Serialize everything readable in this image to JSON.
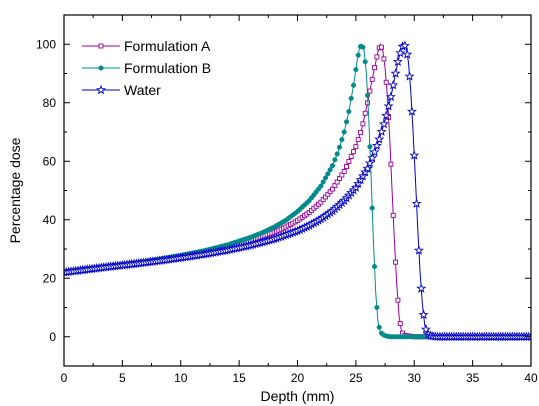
{
  "chart_data": {
    "type": "line",
    "title": "",
    "xlabel": "Depth (mm)",
    "ylabel": "Percentage dose",
    "xlim": [
      0,
      40
    ],
    "ylim": [
      -10,
      110
    ],
    "xticks": [
      0,
      5,
      10,
      15,
      20,
      25,
      30,
      35,
      40
    ],
    "yticks": [
      0,
      20,
      40,
      60,
      80,
      100
    ],
    "grid": false,
    "legend": "top-left",
    "series": [
      {
        "name": "Formulation A",
        "color": "#990099",
        "marker": "square-open",
        "x": [
          0,
          2,
          4,
          6,
          8,
          10,
          12,
          14,
          16,
          18,
          19,
          20,
          21,
          22,
          23,
          24,
          25,
          25.5,
          26,
          26.3,
          26.6,
          26.9,
          27.1,
          27.3,
          27.5,
          27.7,
          27.9,
          28.1,
          28.3,
          28.5,
          28.7,
          28.9,
          29.1,
          30,
          32,
          35,
          40
        ],
        "y": [
          22,
          23.2,
          24.1,
          25.1,
          26.2,
          27.4,
          28.9,
          30.6,
          32.8,
          35.7,
          37.5,
          39.7,
          42.5,
          46,
          50.5,
          56.5,
          65,
          71,
          80,
          86,
          92,
          97.5,
          100,
          98,
          92,
          82,
          68,
          50,
          33,
          18,
          7,
          2,
          0.5,
          0,
          0,
          0,
          0
        ]
      },
      {
        "name": "Formulation B",
        "color": "#008b8b",
        "marker": "circle-filled",
        "x": [
          0,
          2,
          4,
          6,
          8,
          10,
          12,
          14,
          16,
          17,
          18,
          19,
          20,
          21,
          22,
          23,
          23.5,
          24,
          24.4,
          24.8,
          25.1,
          25.3,
          25.5,
          25.7,
          25.9,
          26.1,
          26.3,
          26.5,
          26.7,
          26.9,
          27.1,
          27.5,
          28,
          30,
          35,
          40
        ],
        "y": [
          22,
          23.2,
          24.2,
          25.2,
          26.4,
          27.8,
          29.4,
          31.4,
          34,
          35.6,
          37.5,
          39.8,
          42.8,
          46.5,
          51.5,
          58.5,
          63.5,
          70,
          77,
          86,
          94,
          98.5,
          100,
          98,
          90,
          75,
          55,
          33,
          15,
          5,
          1.5,
          0.3,
          0,
          0,
          0,
          0
        ]
      },
      {
        "name": "Water",
        "color": "#0000cc",
        "marker": "star-open",
        "x": [
          0,
          2,
          4,
          6,
          8,
          10,
          12,
          14,
          16,
          18,
          20,
          21,
          22,
          23,
          24,
          25,
          26,
          26.5,
          27,
          27.5,
          28,
          28.3,
          28.6,
          28.9,
          29.1,
          29.3,
          29.5,
          29.7,
          29.9,
          30.1,
          30.3,
          30.5,
          30.7,
          30.9,
          31.1,
          31.5,
          32,
          35,
          40
        ],
        "y": [
          22,
          23,
          24,
          24.9,
          25.9,
          27,
          28.2,
          29.6,
          31.3,
          33.4,
          36.2,
          38,
          40.2,
          43,
          46.5,
          51,
          57.5,
          62,
          67.5,
          74,
          82,
          88,
          94,
          98.5,
          100,
          99,
          94,
          84,
          70,
          54,
          37,
          22,
          11,
          4,
          1,
          0.2,
          0,
          0,
          0
        ]
      }
    ]
  }
}
